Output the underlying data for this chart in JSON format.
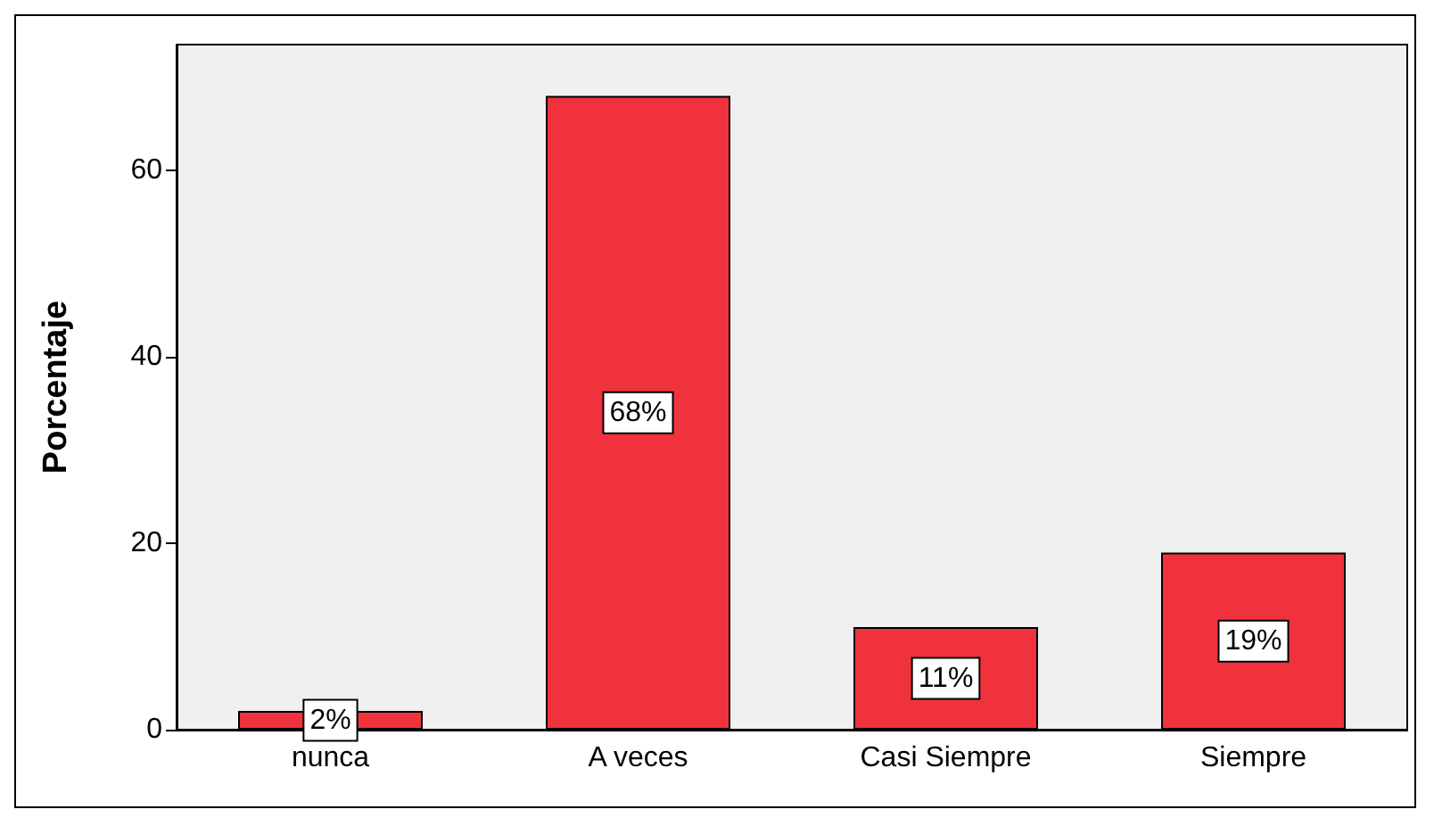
{
  "chart_data": {
    "type": "bar",
    "ylabel": "Porcentaje",
    "categories": [
      "nunca",
      "A veces",
      "Casi Siempre",
      "Siempre"
    ],
    "values": [
      2,
      68,
      11,
      19
    ],
    "color": "#f0323c",
    "value_labels": [
      "2%",
      "68%",
      "11%",
      "19%"
    ],
    "ylim": [
      0,
      73.5
    ],
    "yticks": [
      0,
      20,
      40,
      60
    ]
  }
}
